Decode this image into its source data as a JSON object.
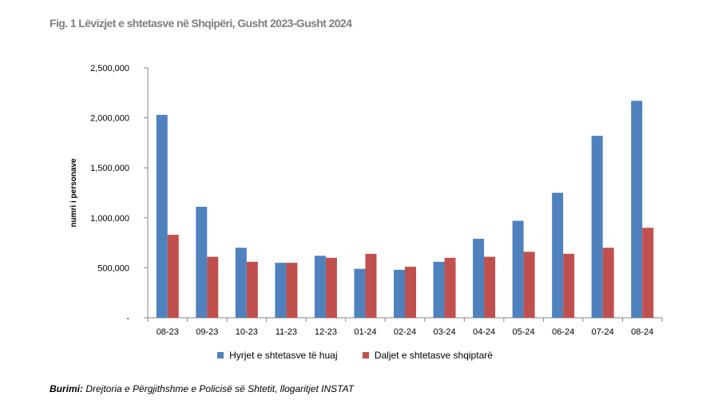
{
  "title": "Fig. 1 Lëvizjet e shtetasve në Shqipëri, Gusht 2023-Gusht 2024",
  "source_label": "Burimi:",
  "source_text": " Drejtoria e Përgjithshme e Policisë së Shtetit, llogaritjet INSTAT",
  "chart_data": {
    "type": "bar",
    "categories": [
      "08-23",
      "09-23",
      "10-23",
      "11-23",
      "12-23",
      "01-24",
      "02-24",
      "03-24",
      "04-24",
      "05-24",
      "06-24",
      "07-24",
      "08-24"
    ],
    "series": [
      {
        "name": "Hyrjet e shtetasve të huaj",
        "color": "#4f81bd",
        "values": [
          2030000,
          1110000,
          700000,
          550000,
          620000,
          490000,
          480000,
          560000,
          790000,
          970000,
          1250000,
          1820000,
          2170000
        ]
      },
      {
        "name": "Daljet e shtetasve shqiptarë",
        "color": "#c0504d",
        "values": [
          830000,
          610000,
          560000,
          550000,
          600000,
          640000,
          510000,
          600000,
          610000,
          660000,
          640000,
          700000,
          900000
        ]
      }
    ],
    "ylabel": "numri i personave",
    "ylim": [
      0,
      2500000
    ],
    "yticks": [
      0,
      500000,
      1000000,
      1500000,
      2000000,
      2500000
    ],
    "ytick_labels": [
      "-",
      "500,000",
      "1,000,000",
      "1,500,000",
      "2,000,000",
      "2,500,000"
    ],
    "grid": false,
    "legend_position": "bottom"
  }
}
